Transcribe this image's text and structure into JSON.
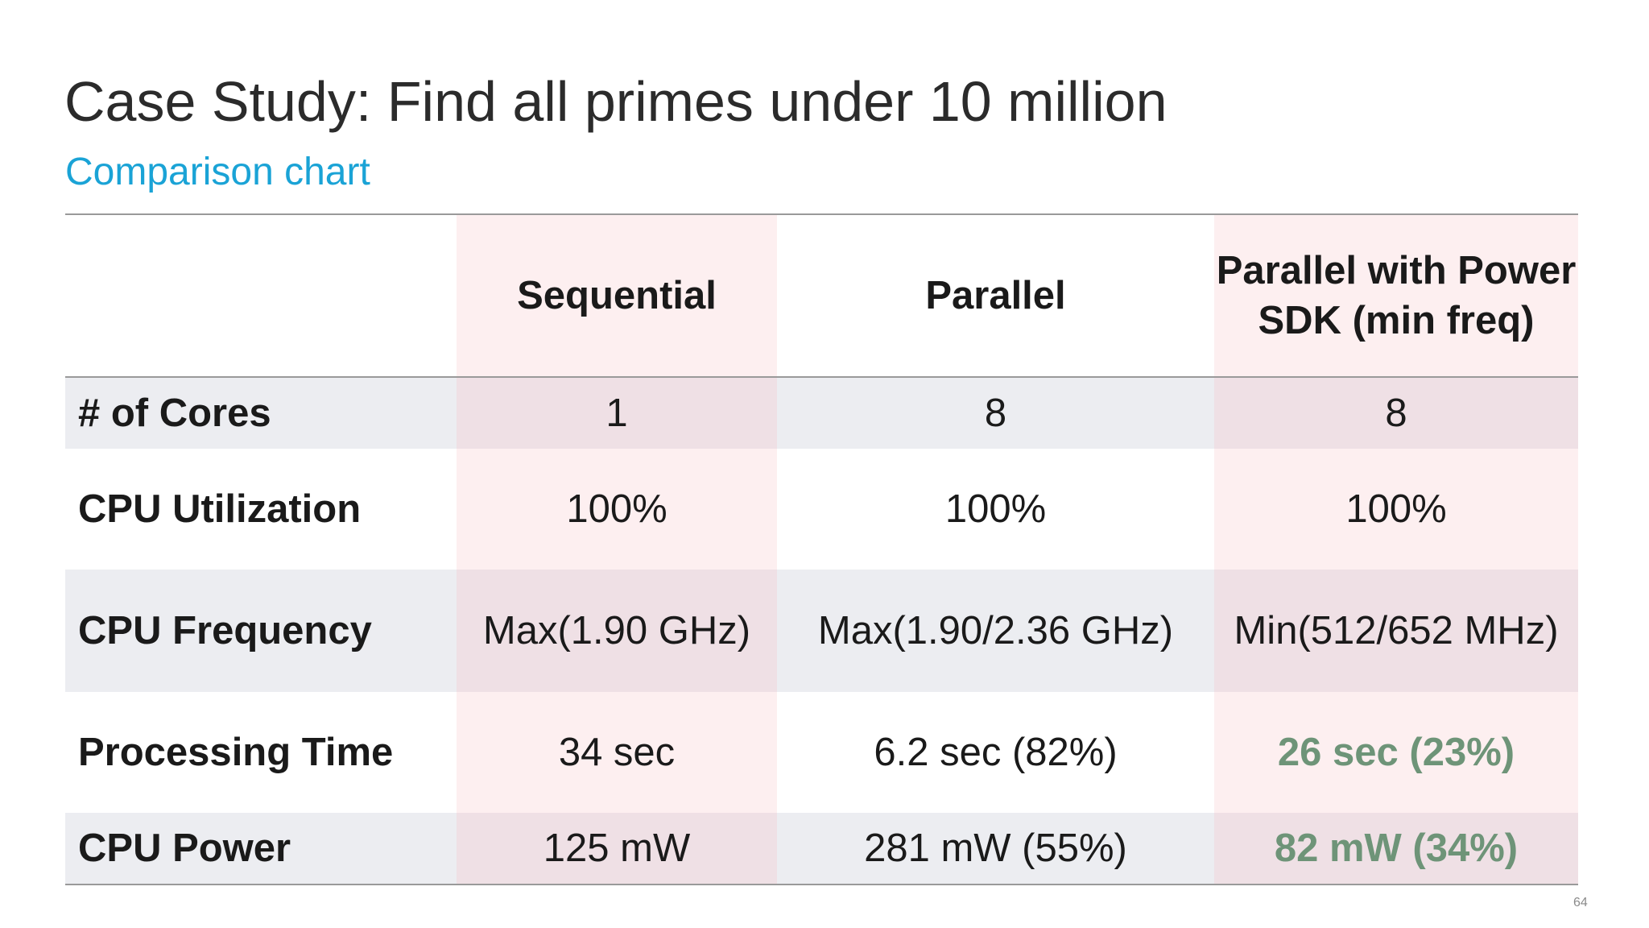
{
  "slide": {
    "title": "Case Study: Find all primes under 10 million",
    "subtitle": "Comparison chart",
    "page_number": "64"
  },
  "table": {
    "headers": [
      "",
      "Sequential",
      "Parallel",
      "Parallel with Power SDK (min freq)"
    ],
    "rows": [
      {
        "label": "# of Cores",
        "values": [
          "1",
          "8",
          "8"
        ]
      },
      {
        "label": "CPU Utilization",
        "values": [
          "100%",
          "100%",
          "100%"
        ]
      },
      {
        "label": "CPU Frequency",
        "values": [
          "Max(1.90 GHz)",
          "Max(1.90/2.36 GHz)",
          "Min(512/652 MHz)"
        ]
      },
      {
        "label": "Processing Time",
        "values": [
          "34 sec",
          "6.2 sec (82%)",
          "26 sec (23%)"
        ]
      },
      {
        "label": "CPU Power",
        "values": [
          "125 mW",
          "281 mW (55%)",
          "82 mW (34%)"
        ]
      }
    ]
  },
  "colors": {
    "title": "#2b2b2b",
    "subtitle": "#1aa3d6",
    "highlight_green": "#6e9478",
    "shaded_row": "#ecedf1",
    "pink_column": "#fdeff0"
  }
}
